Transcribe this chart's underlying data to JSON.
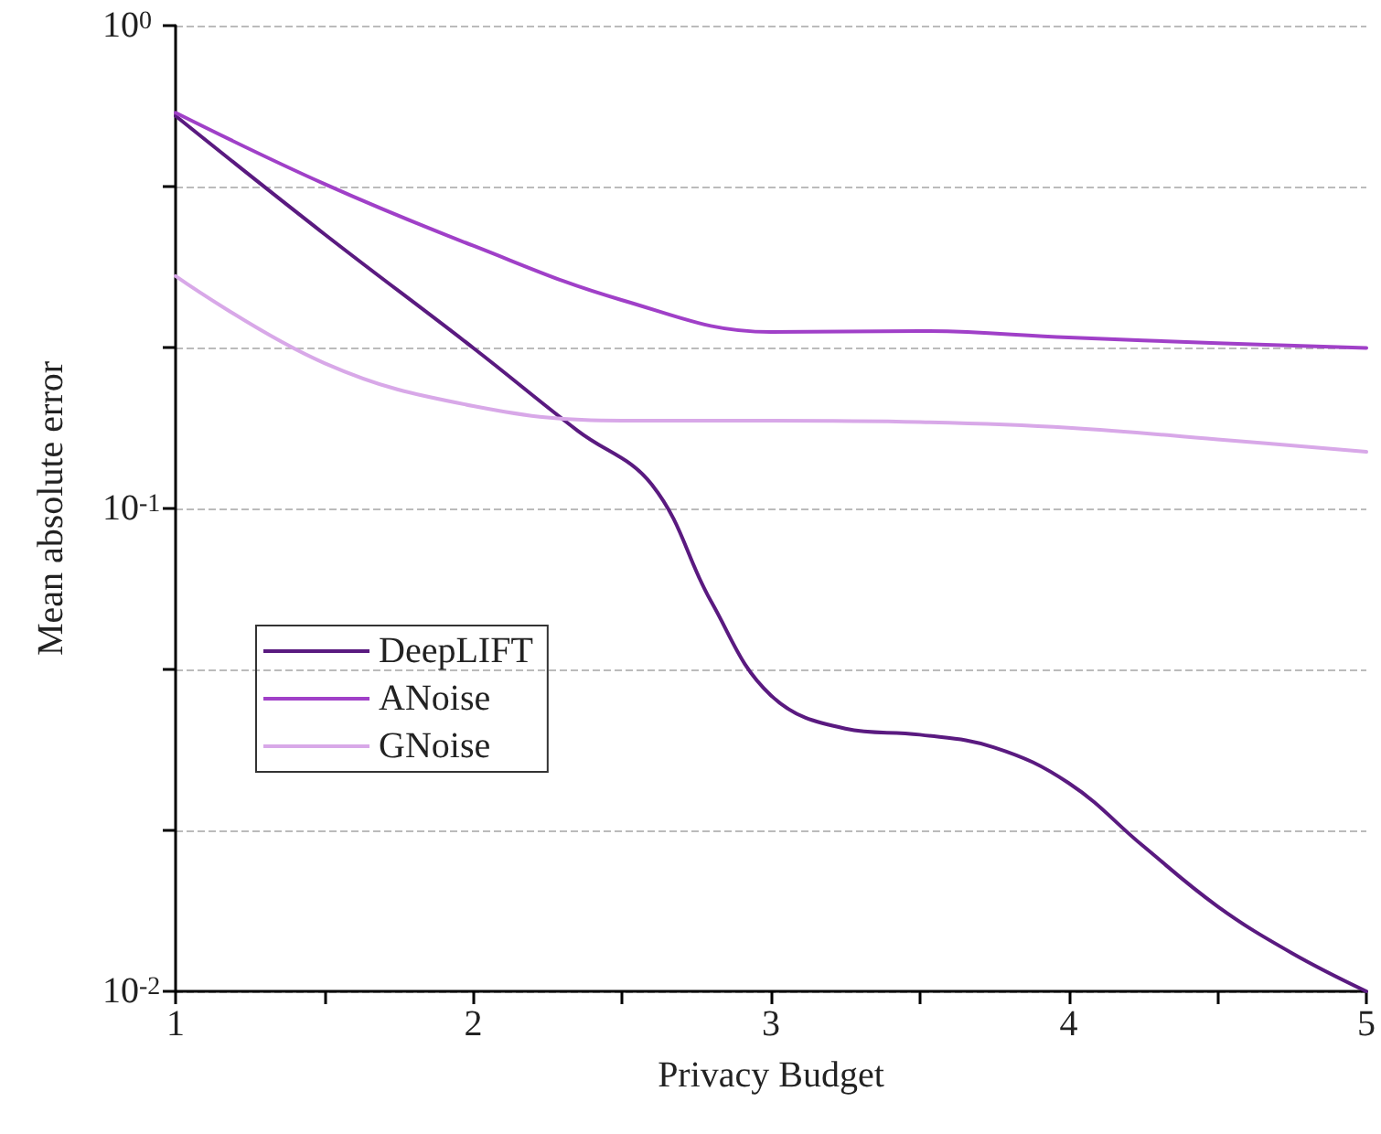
{
  "chart_data": {
    "type": "line",
    "xlabel": "Privacy Budget",
    "ylabel": "Mean absolute error",
    "log": "y",
    "grid": "y",
    "legend": "left",
    "line_style": "solid",
    "marker": "none",
    "xlim": [
      1,
      5
    ],
    "xticks": [
      1,
      {
        "value": 1.5,
        "label": null
      },
      2,
      {
        "value": 2.5,
        "label": null
      },
      3,
      {
        "value": 3.5,
        "label": null
      },
      4,
      {
        "value": 4.5,
        "label": null
      },
      5
    ],
    "ylim": [
      0.01,
      1
    ],
    "yticks": [
      {
        "value": 0.01,
        "label": "10$^{-2}$"
      },
      {
        "value": 0.0215,
        "label": null
      },
      {
        "value": 0.0464,
        "label": null
      },
      {
        "value": 0.1,
        "label": "10$^{-1}$"
      },
      {
        "value": 0.215,
        "label": null
      },
      {
        "value": 0.464,
        "label": null
      },
      {
        "value": 1,
        "label": "10$^{0}$"
      }
    ],
    "series": [
      {
        "name": "DeepLIFT",
        "color": "#5a1a80",
        "x": [
          1,
          1.5,
          2,
          2.35,
          2.6,
          2.8,
          3,
          3.25,
          3.5,
          3.75,
          4,
          4.25,
          4.5,
          4.75,
          5
        ],
        "values": [
          0.65,
          0.37,
          0.215,
          0.145,
          0.112,
          0.064,
          0.041,
          0.035,
          0.034,
          0.032,
          0.027,
          0.02,
          0.015,
          0.012,
          0.01
        ]
      },
      {
        "name": "ANoise",
        "color": "#a040c8",
        "x": [
          1,
          1.5,
          2,
          2.5,
          3,
          3.5,
          4,
          4.5,
          5
        ],
        "values": [
          0.66,
          0.47,
          0.35,
          0.27,
          0.232,
          0.233,
          0.226,
          0.22,
          0.215
        ]
      },
      {
        "name": "GNoise",
        "color": "#d8a8e8",
        "x": [
          1,
          1.5,
          2,
          2.5,
          3,
          3.5,
          4,
          4.5,
          5
        ],
        "values": [
          0.303,
          0.2,
          0.163,
          0.152,
          0.152,
          0.151,
          0.147,
          0.139,
          0.131
        ]
      }
    ]
  }
}
